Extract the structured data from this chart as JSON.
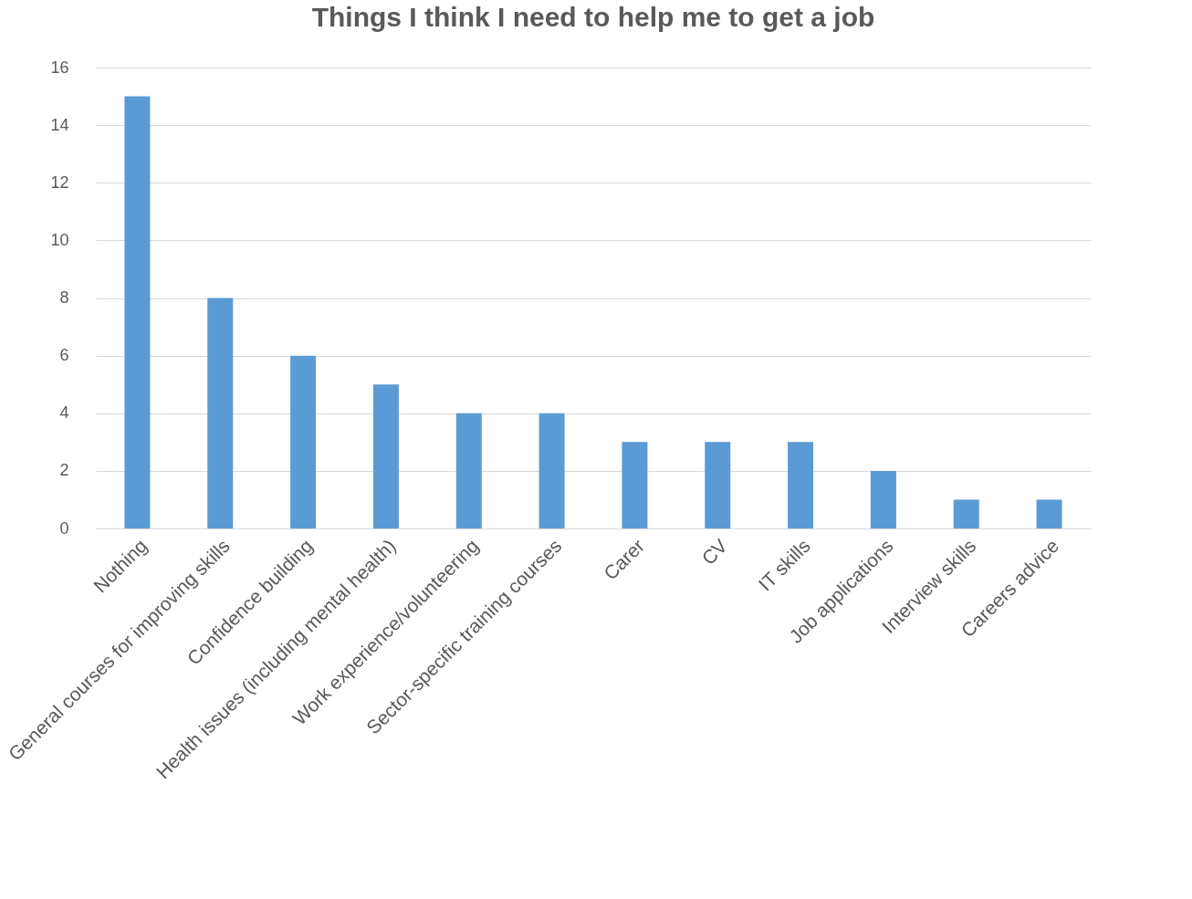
{
  "chart_data": {
    "type": "bar",
    "title": "Things I think I need to help me to get a job",
    "categories": [
      "Nothing",
      "General courses for improving skills",
      "Confidence building",
      "Health issues (including mental health)",
      "Work experience/volunteering",
      "Sector-specific training courses",
      "Carer",
      "CV",
      "IT skills",
      "Job applications",
      "Interview skills",
      "Careers advice"
    ],
    "values": [
      15,
      8,
      6,
      5,
      4,
      4,
      3,
      3,
      3,
      2,
      1,
      1
    ],
    "color": "#5b9bd5",
    "ylim": [
      0,
      16
    ],
    "yticks": [
      0,
      2,
      4,
      6,
      8,
      10,
      12,
      14,
      16
    ],
    "grid": "y"
  }
}
